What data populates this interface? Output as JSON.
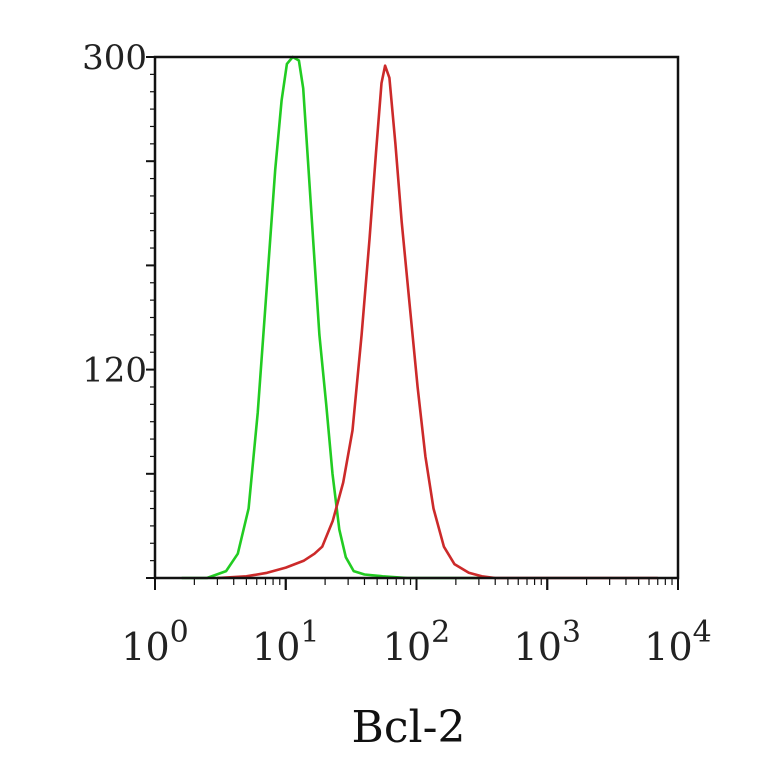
{
  "chart_data": {
    "type": "line",
    "title": "",
    "xlabel": "Bcl-2",
    "ylabel": "",
    "x_scale": "log",
    "xlim": [
      1,
      10000
    ],
    "ylim": [
      0,
      300
    ],
    "y_ticks": [
      {
        "value": 120,
        "label": "120"
      },
      {
        "value": 300,
        "label": "300"
      }
    ],
    "x_ticks": [
      {
        "value": 1,
        "base": "10",
        "exp": "0"
      },
      {
        "value": 10,
        "base": "10",
        "exp": "1"
      },
      {
        "value": 100,
        "base": "10",
        "exp": "2"
      },
      {
        "value": 1000,
        "base": "10",
        "exp": "3"
      },
      {
        "value": 10000,
        "base": "10",
        "exp": "4"
      }
    ],
    "grid": false,
    "legend": "none",
    "series": [
      {
        "color": "#22cc22",
        "points": [
          [
            1.6,
            0
          ],
          [
            2.5,
            0
          ],
          [
            3.5,
            4
          ],
          [
            4.3,
            14
          ],
          [
            5.2,
            40
          ],
          [
            6.1,
            95
          ],
          [
            7.2,
            170
          ],
          [
            8.3,
            235
          ],
          [
            9.3,
            275
          ],
          [
            10.2,
            296
          ],
          [
            11.3,
            300
          ],
          [
            12.6,
            298
          ],
          [
            13.6,
            282
          ],
          [
            14.8,
            240
          ],
          [
            16.2,
            195
          ],
          [
            18.1,
            140
          ],
          [
            20.4,
            100
          ],
          [
            22.8,
            60
          ],
          [
            25.7,
            28
          ],
          [
            28.8,
            12
          ],
          [
            33.1,
            4
          ],
          [
            40,
            2
          ],
          [
            55,
            1
          ],
          [
            85,
            0
          ],
          [
            150,
            0
          ],
          [
            300,
            0
          ]
        ]
      },
      {
        "color": "#cc2a2a",
        "points": [
          [
            3,
            0
          ],
          [
            5,
            1
          ],
          [
            7.2,
            3
          ],
          [
            10,
            6
          ],
          [
            13.8,
            10
          ],
          [
            16.6,
            14
          ],
          [
            19,
            18
          ],
          [
            22.9,
            33
          ],
          [
            27.5,
            55
          ],
          [
            32.4,
            85
          ],
          [
            38,
            140
          ],
          [
            43.7,
            195
          ],
          [
            49,
            245
          ],
          [
            54,
            285
          ],
          [
            57.5,
            295
          ],
          [
            62,
            288
          ],
          [
            69,
            250
          ],
          [
            77,
            205
          ],
          [
            88,
            160
          ],
          [
            102,
            110
          ],
          [
            117,
            70
          ],
          [
            135,
            40
          ],
          [
            162,
            18
          ],
          [
            195,
            8
          ],
          [
            251,
            3
          ],
          [
            316,
            1
          ],
          [
            400,
            0
          ],
          [
            1000,
            0
          ],
          [
            3000,
            0
          ],
          [
            7000,
            0
          ]
        ]
      }
    ]
  }
}
